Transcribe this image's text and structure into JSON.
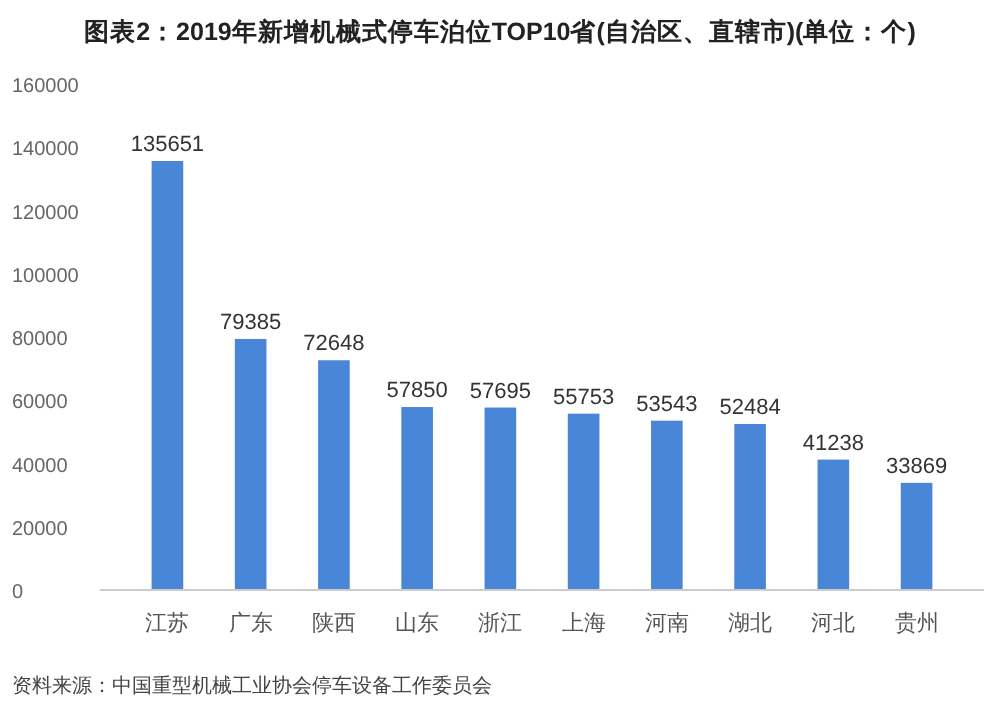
{
  "chart_data": {
    "type": "bar",
    "title": "图表2：2019年新增机械式停车泊位TOP10省(自治区、直辖市)(单位：个)",
    "categories": [
      "江苏",
      "广东",
      "陕西",
      "山东",
      "浙江",
      "上海",
      "河南",
      "湖北",
      "河北",
      "贵州"
    ],
    "values": [
      135651,
      79385,
      72648,
      57850,
      57695,
      55753,
      53543,
      52484,
      41238,
      33869
    ],
    "color": "#4a86d8",
    "ylim": [
      0,
      160000
    ],
    "yticks": [
      0,
      20000,
      40000,
      60000,
      80000,
      100000,
      120000,
      140000,
      160000
    ],
    "data_labels": true,
    "annotations": [
      "资料来源：中国重型机械工业协会停车设备工作委员会"
    ]
  }
}
